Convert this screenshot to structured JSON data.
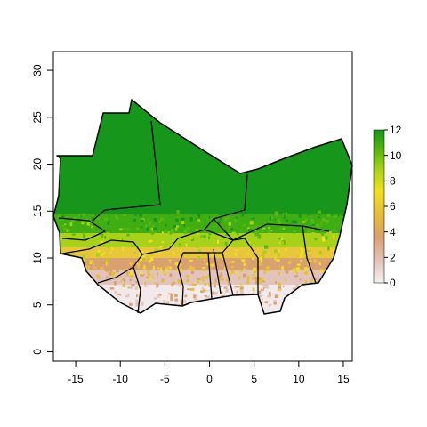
{
  "map": {
    "type": "raster",
    "x_ticks": [
      "-15",
      "-10",
      "-5",
      "0",
      "5",
      "10",
      "15"
    ],
    "y_ticks": [
      "0",
      "5",
      "10",
      "15",
      "20",
      "25",
      "30"
    ],
    "xlim": [
      -17.5,
      16
    ],
    "ylim": [
      -1,
      32
    ],
    "legend": {
      "position": "right",
      "range": [
        0,
        12
      ],
      "ticks": [
        "0",
        "2",
        "4",
        "6",
        "8",
        "10",
        "12"
      ],
      "colors": [
        "#f2f2f2",
        "#e3c4bd",
        "#d9a070",
        "#e5c03a",
        "#f0e020",
        "#a8d21a",
        "#5ab810",
        "#16961a"
      ]
    }
  },
  "chart_data": {
    "type": "heatmap",
    "title": "",
    "xlabel": "",
    "ylabel": "",
    "xlim": [
      -17.5,
      16
    ],
    "ylim": [
      -1,
      32
    ],
    "value_range": [
      0,
      12
    ],
    "x_ticks": [
      -15,
      -10,
      -5,
      0,
      5,
      10,
      15
    ],
    "y_ticks": [
      0,
      5,
      10,
      15,
      20,
      25,
      30
    ],
    "legend_ticks": [
      0,
      2,
      4,
      6,
      8,
      10,
      12
    ],
    "bands": [
      {
        "lat_range": [
          14,
          27
        ],
        "value": 12
      },
      {
        "lat_range": [
          12,
          14
        ],
        "value": 9
      },
      {
        "lat_range": [
          10,
          12
        ],
        "value": 6
      },
      {
        "lat_range": [
          8,
          10
        ],
        "value": 3
      },
      {
        "lat_range": [
          4,
          8
        ],
        "value": 0.5
      }
    ]
  }
}
